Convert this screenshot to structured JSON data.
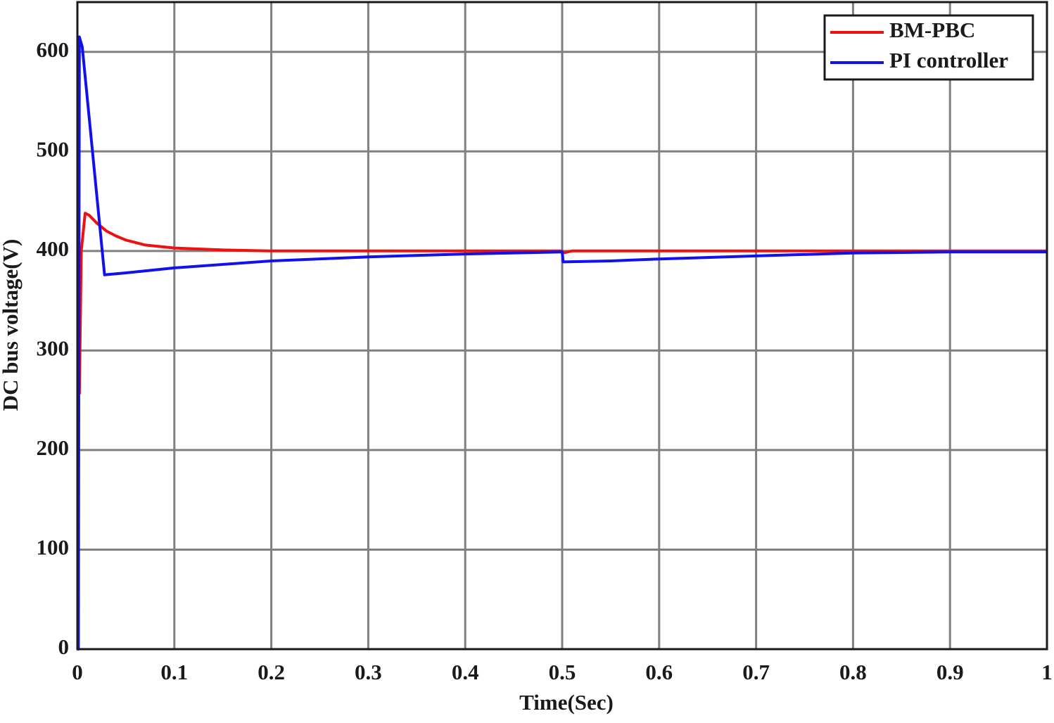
{
  "chart_data": {
    "type": "line",
    "x_label": "Time(Sec)",
    "y_label": "DC bus voltage(V)",
    "xlim": [
      0,
      1
    ],
    "ylim": [
      0,
      650
    ],
    "xticks": [
      0,
      0.1,
      0.2,
      0.3,
      0.4,
      0.5,
      0.6,
      0.7,
      0.8,
      0.9,
      1
    ],
    "yticks": [
      0,
      100,
      200,
      300,
      400,
      500,
      600
    ],
    "grid": true,
    "legend": "upper right",
    "series": [
      {
        "name": "BM-PBC",
        "color": "#ee1111",
        "x": [
          0.002,
          0.004,
          0.008,
          0.012,
          0.02,
          0.03,
          0.04,
          0.05,
          0.07,
          0.1,
          0.15,
          0.2,
          0.5,
          0.501,
          0.51,
          1
        ],
        "values": [
          256,
          400,
          438,
          436,
          428,
          420,
          415,
          411,
          406,
          403,
          401,
          400,
          400,
          398,
          400,
          400
        ]
      },
      {
        "name": "PI controller",
        "color": "#1111ee",
        "x": [
          0,
          0.001,
          0.002,
          0.005,
          0.028,
          0.05,
          0.1,
          0.2,
          0.3,
          0.4,
          0.5,
          0.501,
          0.55,
          0.6,
          0.7,
          0.8,
          0.9,
          1
        ],
        "values": [
          0,
          0,
          615,
          605,
          376,
          378,
          383,
          390,
          394,
          397,
          399,
          389,
          390,
          392,
          395,
          398,
          399,
          399
        ]
      }
    ]
  }
}
